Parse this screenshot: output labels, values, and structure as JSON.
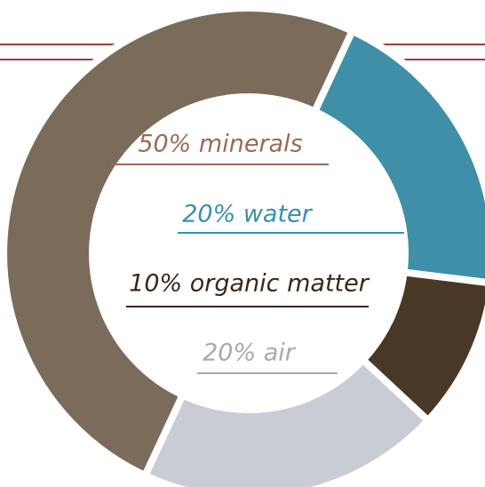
{
  "chart_data": {
    "type": "donut",
    "values": [
      50,
      20,
      10,
      20
    ],
    "value_labels": [
      "50% minerals",
      "20% water",
      "10% organic matter",
      "20% air"
    ],
    "colors": [
      "#7b6b5b",
      "#3f8fa9",
      "#4a3826",
      "#c9ccd4"
    ],
    "label_colors": [
      "#9b6a58",
      "#3a8fb0",
      "#3a2718",
      "#a9a9a9"
    ]
  }
}
